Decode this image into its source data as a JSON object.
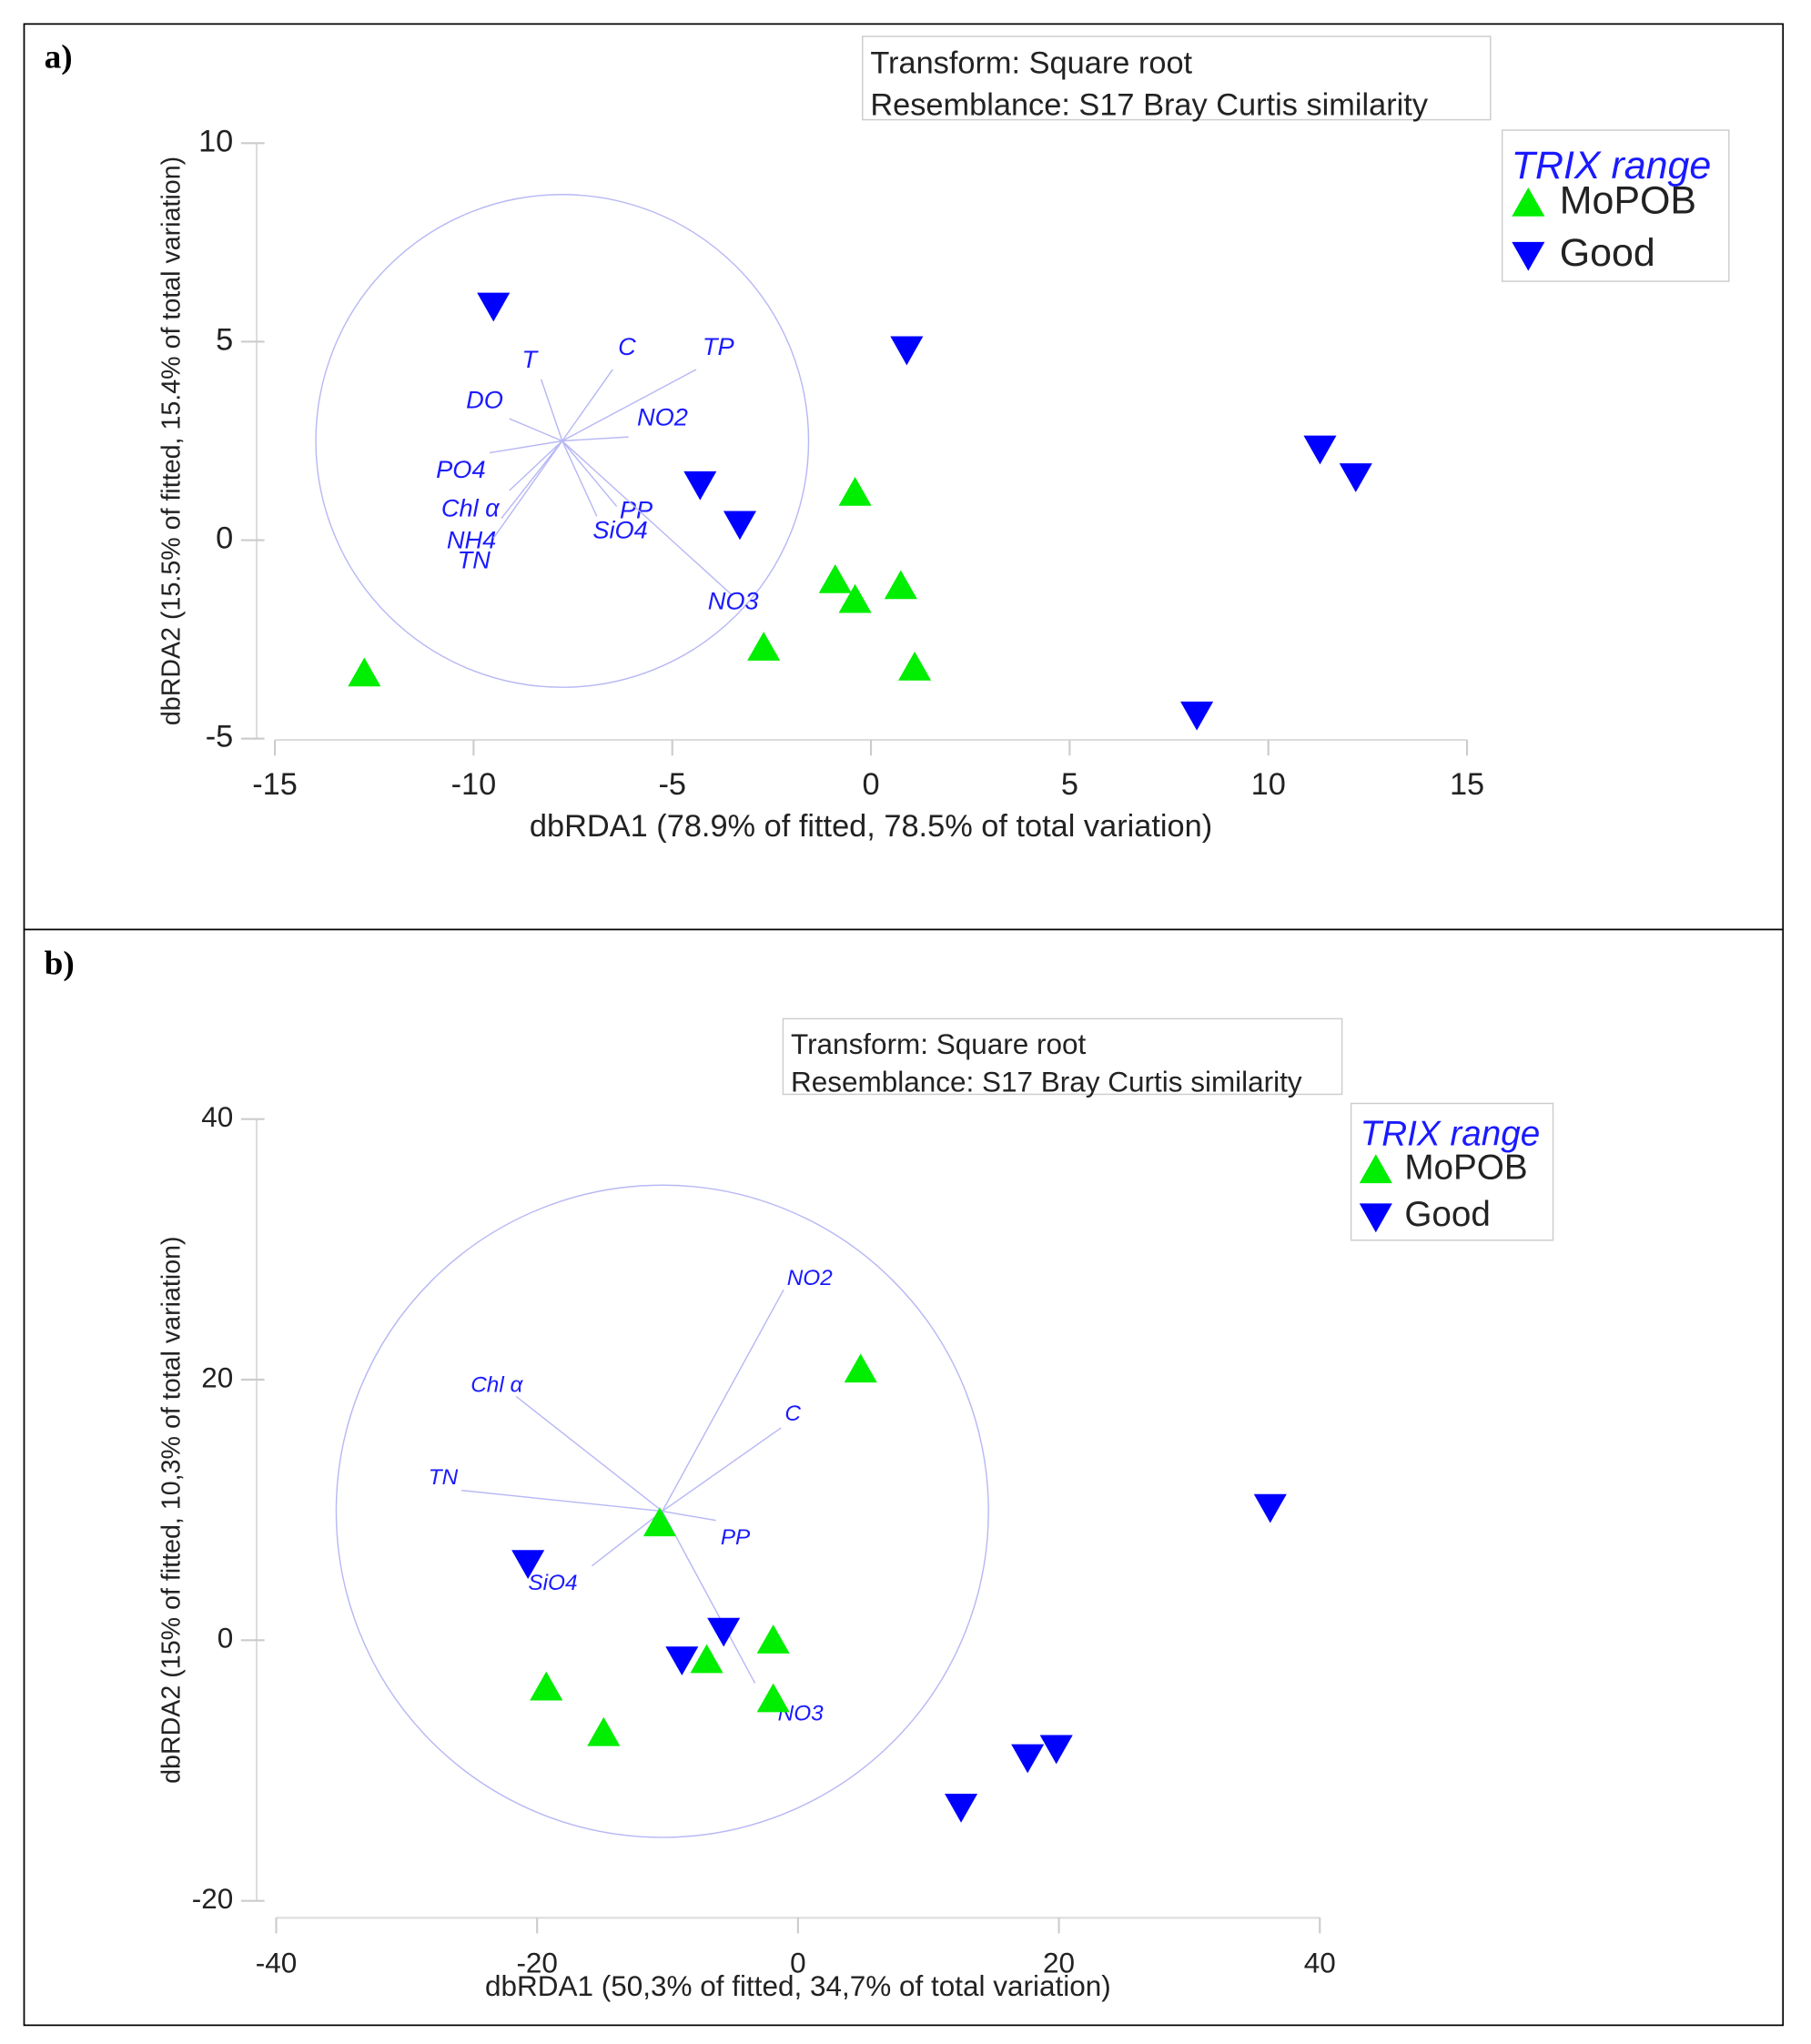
{
  "chart_data": [
    {
      "type": "scatter",
      "panel_label": "a)",
      "info": [
        "Transform: Square root",
        "Resemblance: S17 Bray Curtis similarity"
      ],
      "legend": {
        "title": "TRIX range",
        "items": [
          {
            "name": "MoPOB",
            "marker": "triangle-up",
            "color": "#00ee00"
          },
          {
            "name": "Good",
            "marker": "triangle-down",
            "color": "#0000ff"
          }
        ],
        "placement": "top-right"
      },
      "xlabel": "dbRDA1 (78.9% of fitted, 78.5% of total variation)",
      "ylabel": "dbRDA2 (15.5% of fitted, 15.4% of total variation)",
      "xlim": [
        -15,
        15
      ],
      "ylim": [
        -5,
        10
      ],
      "xticks": [
        "-15",
        "-10",
        "-5",
        "0",
        "5",
        "10",
        "15"
      ],
      "yticks": [
        "-5",
        "0",
        "5",
        "10"
      ],
      "series": [
        {
          "name": "MoPOB",
          "points": [
            [
              -12.75,
              -3.35
            ],
            [
              -2.7,
              -2.7
            ],
            [
              -0.4,
              1.2
            ],
            [
              -0.9,
              -1.0
            ],
            [
              -0.4,
              -1.5
            ],
            [
              0.75,
              -1.15
            ],
            [
              1.1,
              -3.2
            ]
          ]
        },
        {
          "name": "Good",
          "points": [
            [
              -9.5,
              5.9
            ],
            [
              0.9,
              4.8
            ],
            [
              -4.3,
              1.4
            ],
            [
              -3.3,
              0.4
            ],
            [
              11.3,
              2.3
            ],
            [
              12.2,
              1.6
            ],
            [
              8.2,
              -4.4
            ]
          ]
        }
      ],
      "circle": {
        "center": [
          -7.77,
          2.5
        ],
        "radius": 6.2
      },
      "vectors": [
        {
          "label": "T",
          "end": [
            -8.3,
            4.05
          ]
        },
        {
          "label": "C",
          "end": [
            -6.5,
            4.3
          ]
        },
        {
          "label": "TP",
          "end": [
            -4.4,
            4.3
          ]
        },
        {
          "label": "DO",
          "end": [
            -9.1,
            3.06
          ]
        },
        {
          "label": "NO2",
          "end": [
            -6.1,
            2.6
          ]
        },
        {
          "label": "PO4",
          "end": [
            -9.6,
            2.2
          ]
        },
        {
          "label": "Chl α",
          "end": [
            -9.1,
            1.25
          ]
        },
        {
          "label": "NH4",
          "end": [
            -9.3,
            0.55
          ]
        },
        {
          "label": "TN",
          "end": [
            -9.5,
            0.05
          ]
        },
        {
          "label": "PP",
          "end": [
            -6.4,
            0.85
          ]
        },
        {
          "label": "SiO4",
          "end": [
            -6.9,
            0.6
          ]
        },
        {
          "label": "NO3",
          "end": [
            -3.5,
            -1.38
          ]
        }
      ]
    },
    {
      "type": "scatter",
      "panel_label": "b)",
      "info": [
        "Transform: Square root",
        "Resemblance: S17 Bray Curtis similarity"
      ],
      "legend": {
        "title": "TRIX range",
        "items": [
          {
            "name": "MoPOB",
            "marker": "triangle-up",
            "color": "#00ee00"
          },
          {
            "name": "Good",
            "marker": "triangle-down",
            "color": "#0000ff"
          }
        ],
        "placement": "top-right"
      },
      "xlabel": "dbRDA1 (50,3% of fitted, 34,7% of total variation)",
      "ylabel": "dbRDA2 (15% of fitted, 10,3% of total variation)",
      "xlim": [
        -40,
        40
      ],
      "ylim": [
        -20,
        40
      ],
      "xticks": [
        "-40",
        "-20",
        "0",
        "20",
        "40"
      ],
      "yticks": [
        "-20",
        "0",
        "20",
        "40"
      ],
      "series": [
        {
          "name": "MoPOB",
          "points": [
            [
              4.8,
              20.8
            ],
            [
              -10.6,
              9.0
            ],
            [
              -19.3,
              -3.6
            ],
            [
              -14.9,
              -7.1
            ],
            [
              -7.0,
              -1.5
            ],
            [
              -1.9,
              0.0
            ],
            [
              -1.9,
              -4.5
            ]
          ]
        },
        {
          "name": "Good",
          "points": [
            [
              36.2,
              10.2
            ],
            [
              -20.7,
              5.9
            ],
            [
              -5.7,
              0.7
            ],
            [
              -8.9,
              -1.5
            ],
            [
              19.8,
              -8.3
            ],
            [
              17.6,
              -9.0
            ],
            [
              12.5,
              -12.8
            ]
          ]
        }
      ],
      "circle": {
        "center": [
          -10.4,
          9.9
        ],
        "radius": 25
      },
      "vectors": [
        {
          "label": "NO2",
          "end": [
            -1.1,
            26.9
          ]
        },
        {
          "label": "Chl α",
          "end": [
            -21.6,
            18.7
          ]
        },
        {
          "label": "C",
          "end": [
            -1.3,
            16.3
          ]
        },
        {
          "label": "TN",
          "end": [
            -25.8,
            11.5
          ]
        },
        {
          "label": "PP",
          "end": [
            -6.3,
            9.2
          ]
        },
        {
          "label": "SiO4",
          "end": [
            -15.8,
            5.7
          ]
        },
        {
          "label": "NO3",
          "end": [
            -3.3,
            -3.3
          ]
        }
      ]
    }
  ]
}
